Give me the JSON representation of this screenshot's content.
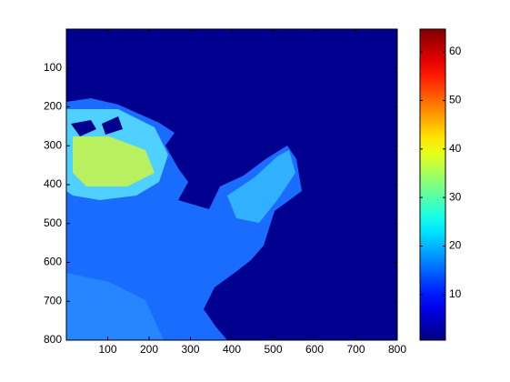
{
  "chart_data": {
    "type": "image",
    "colormap": "jet",
    "xlim": [
      0,
      800
    ],
    "xticks": [
      100,
      200,
      300,
      400,
      500,
      600,
      700,
      800
    ],
    "ylim": [
      0,
      800
    ],
    "yticks": [
      100,
      200,
      300,
      400,
      500,
      600,
      700,
      800
    ],
    "y_reversed": true,
    "clim": [
      0.6,
      64.7
    ],
    "cticks": [
      10,
      20,
      30,
      40,
      50,
      60
    ]
  }
}
